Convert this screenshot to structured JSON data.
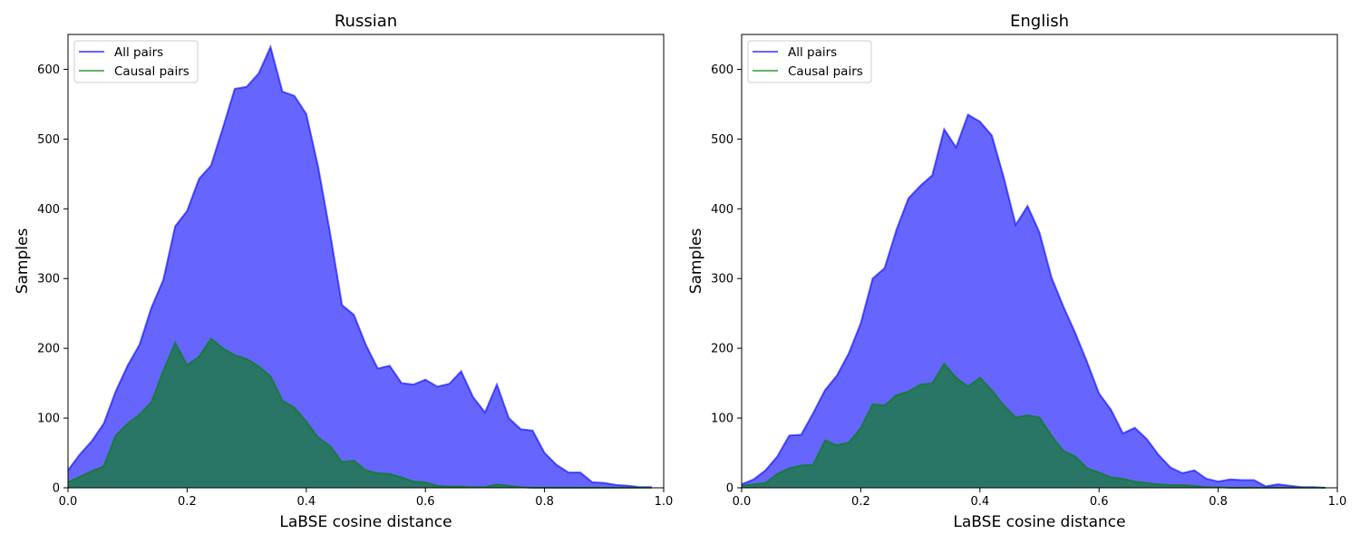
{
  "chart_data": [
    {
      "type": "area",
      "title": "Russian",
      "xlabel": "LaBSE cosine distance",
      "ylabel": "Samples",
      "xlim": [
        0,
        1.0
      ],
      "ylim": [
        0,
        650
      ],
      "xticks": [
        "0.0",
        "0.2",
        "0.4",
        "0.6",
        "0.8",
        "1.0"
      ],
      "yticks": [
        "0",
        "100",
        "200",
        "300",
        "400",
        "500",
        "600"
      ],
      "legend_position": "upper left",
      "x": [
        0.0,
        0.02,
        0.04,
        0.06,
        0.08,
        0.1,
        0.12,
        0.14,
        0.16,
        0.18,
        0.2,
        0.22,
        0.24,
        0.26,
        0.28,
        0.3,
        0.32,
        0.34,
        0.36,
        0.38,
        0.4,
        0.42,
        0.44,
        0.46,
        0.48,
        0.5,
        0.52,
        0.54,
        0.56,
        0.58,
        0.6,
        0.62,
        0.64,
        0.66,
        0.68,
        0.7,
        0.72,
        0.74,
        0.76,
        0.78,
        0.8,
        0.82,
        0.84,
        0.86,
        0.88,
        0.9,
        0.92,
        0.94,
        0.96,
        0.98
      ],
      "series": [
        {
          "name": "All pairs",
          "color": "#0000ff",
          "values": [
            25,
            48,
            67,
            92,
            138,
            175,
            205,
            258,
            298,
            375,
            397,
            443,
            462,
            516,
            572,
            575,
            594,
            632,
            568,
            562,
            536,
            460,
            365,
            262,
            248,
            205,
            171,
            175,
            150,
            148,
            155,
            145,
            149,
            167,
            130,
            108,
            148,
            100,
            84,
            82,
            50,
            33,
            22,
            22,
            8,
            7,
            4,
            3,
            1,
            1
          ]
        },
        {
          "name": "Causal pairs",
          "color": "#008000",
          "values": [
            8,
            16,
            24,
            31,
            75,
            92,
            105,
            123,
            168,
            208,
            176,
            188,
            214,
            200,
            190,
            185,
            174,
            160,
            125,
            115,
            95,
            72,
            60,
            37,
            39,
            25,
            21,
            20,
            15,
            9,
            8,
            3,
            2,
            2,
            1,
            1,
            5,
            3,
            1,
            0,
            0,
            0,
            0,
            0,
            0,
            0,
            0,
            0,
            0,
            0
          ]
        }
      ]
    },
    {
      "type": "area",
      "title": "English",
      "xlabel": "LaBSE cosine distance",
      "ylabel": "Samples",
      "xlim": [
        0,
        1.0
      ],
      "ylim": [
        0,
        650
      ],
      "xticks": [
        "0.0",
        "0.2",
        "0.4",
        "0.6",
        "0.8",
        "1.0"
      ],
      "yticks": [
        "0",
        "100",
        "200",
        "300",
        "400",
        "500",
        "600"
      ],
      "legend_position": "upper left",
      "x": [
        0.0,
        0.02,
        0.04,
        0.06,
        0.08,
        0.1,
        0.12,
        0.14,
        0.16,
        0.18,
        0.2,
        0.22,
        0.24,
        0.26,
        0.28,
        0.3,
        0.32,
        0.34,
        0.36,
        0.38,
        0.4,
        0.42,
        0.44,
        0.46,
        0.48,
        0.5,
        0.52,
        0.54,
        0.56,
        0.58,
        0.6,
        0.62,
        0.64,
        0.66,
        0.68,
        0.7,
        0.72,
        0.74,
        0.76,
        0.78,
        0.8,
        0.82,
        0.84,
        0.86,
        0.88,
        0.9,
        0.92,
        0.94,
        0.96,
        0.98
      ],
      "series": [
        {
          "name": "All pairs",
          "color": "#0000ff",
          "values": [
            5,
            12,
            25,
            45,
            75,
            76,
            107,
            140,
            161,
            193,
            236,
            300,
            315,
            370,
            415,
            433,
            448,
            514,
            488,
            535,
            525,
            505,
            445,
            377,
            404,
            366,
            302,
            260,
            222,
            180,
            135,
            112,
            78,
            86,
            70,
            47,
            29,
            21,
            25,
            13,
            9,
            12,
            11,
            11,
            2,
            5,
            3,
            1,
            1,
            0
          ]
        },
        {
          "name": "Causal pairs",
          "color": "#008000",
          "values": [
            3,
            5,
            7,
            20,
            28,
            32,
            33,
            68,
            61,
            65,
            86,
            120,
            118,
            133,
            138,
            148,
            150,
            178,
            158,
            145,
            158,
            140,
            118,
            101,
            104,
            101,
            75,
            53,
            45,
            28,
            22,
            15,
            13,
            9,
            7,
            5,
            4,
            4,
            3,
            1,
            1,
            0,
            0,
            0,
            0,
            0,
            0,
            0,
            0,
            0
          ]
        }
      ]
    }
  ]
}
